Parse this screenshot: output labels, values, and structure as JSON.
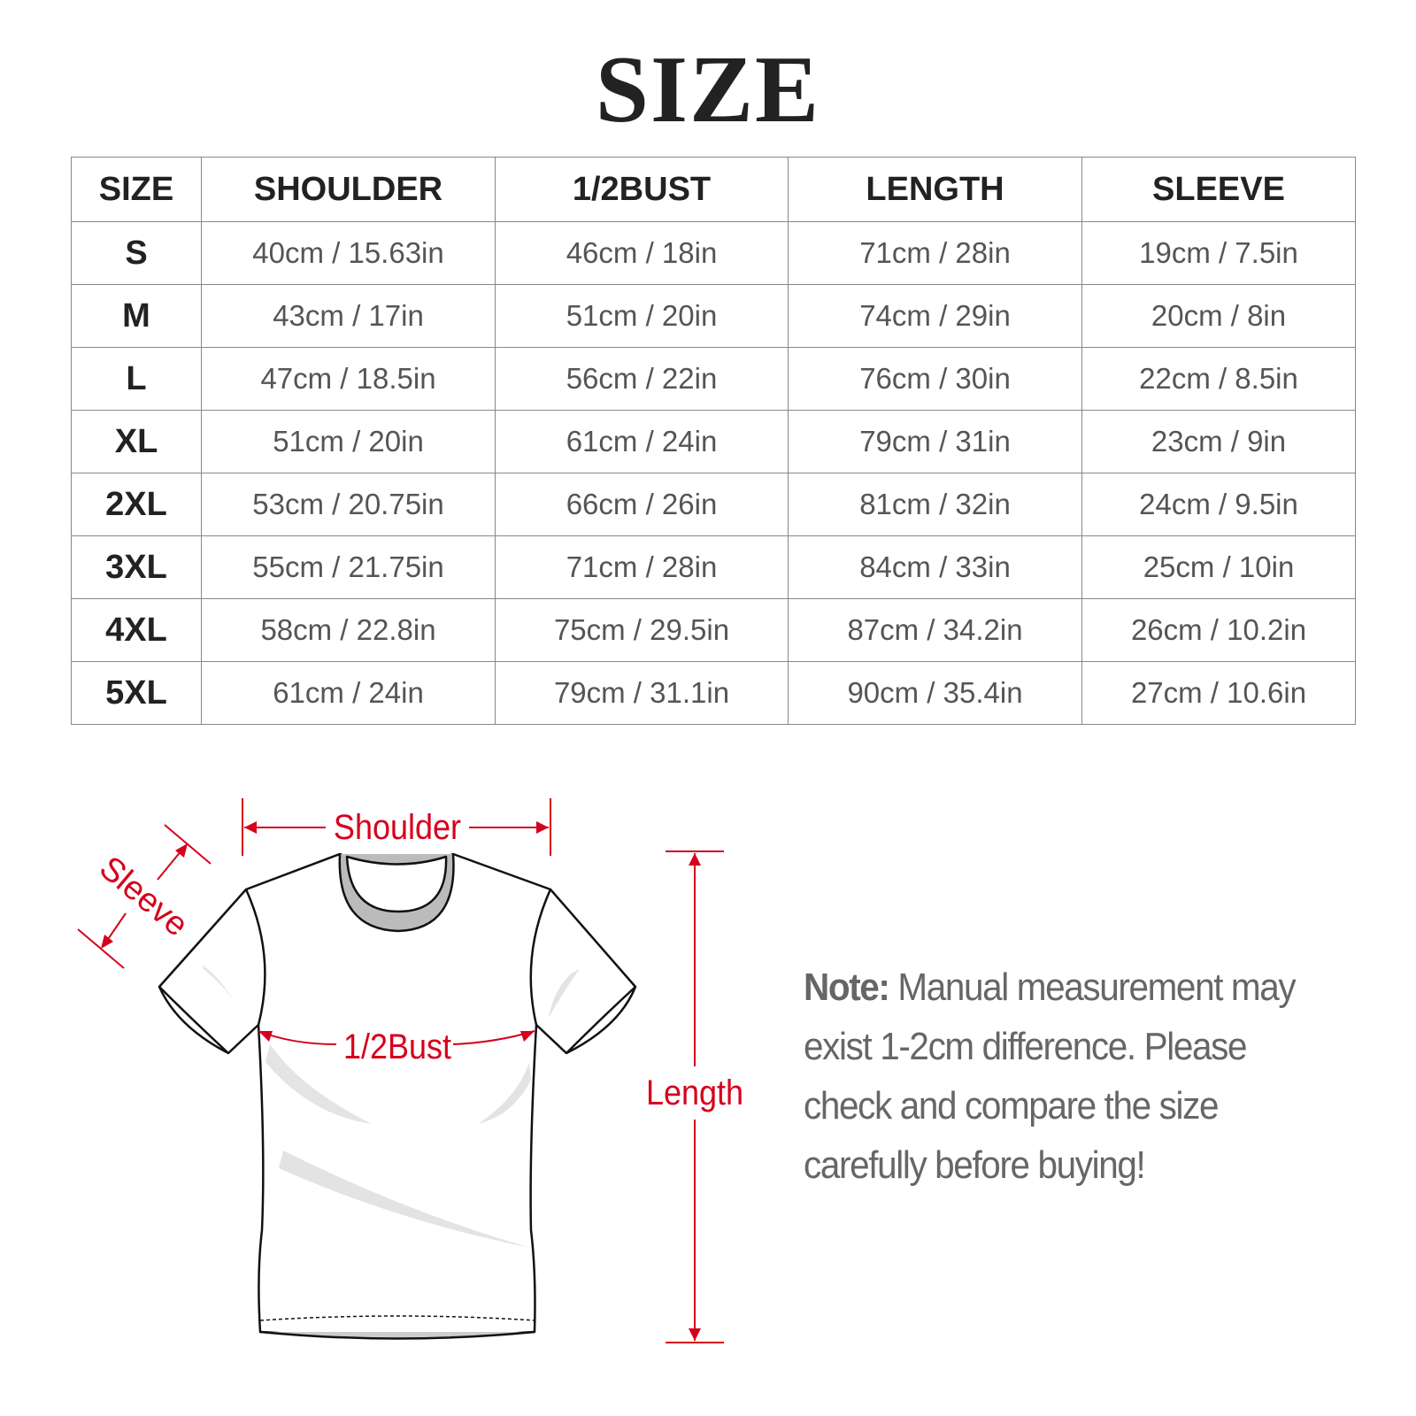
{
  "title": "SIZE",
  "table": {
    "headers": [
      "SIZE",
      "SHOULDER",
      "1/2BUST",
      "LENGTH",
      "SLEEVE"
    ],
    "rows": [
      [
        "S",
        "40cm / 15.63in",
        "46cm / 18in",
        "71cm / 28in",
        "19cm / 7.5in"
      ],
      [
        "M",
        "43cm / 17in",
        "51cm / 20in",
        "74cm / 29in",
        "20cm / 8in"
      ],
      [
        "L",
        "47cm / 18.5in",
        "56cm / 22in",
        "76cm / 30in",
        "22cm / 8.5in"
      ],
      [
        "XL",
        "51cm / 20in",
        "61cm / 24in",
        "79cm / 31in",
        "23cm / 9in"
      ],
      [
        "2XL",
        "53cm / 20.75in",
        "66cm / 26in",
        "81cm / 32in",
        "24cm / 9.5in"
      ],
      [
        "3XL",
        "55cm / 21.75in",
        "71cm / 28in",
        "84cm / 33in",
        "25cm / 10in"
      ],
      [
        "4XL",
        "58cm / 22.8in",
        "75cm / 29.5in",
        "87cm / 34.2in",
        "26cm / 10.2in"
      ],
      [
        "5XL",
        "61cm / 24in",
        "79cm / 31.1in",
        "90cm / 35.4in",
        "27cm / 10.6in"
      ]
    ]
  },
  "diagram": {
    "labels": {
      "shoulder": "Shoulder",
      "sleeve": "Sleeve",
      "bust": "1/2Bust",
      "length": "Length"
    },
    "annotation_color": "#d6001c",
    "icon": "tshirt-outline"
  },
  "note": {
    "label": "Note:",
    "text": " Manual measurement may exist 1-2cm difference. Please check and compare the size carefully before buying!"
  }
}
